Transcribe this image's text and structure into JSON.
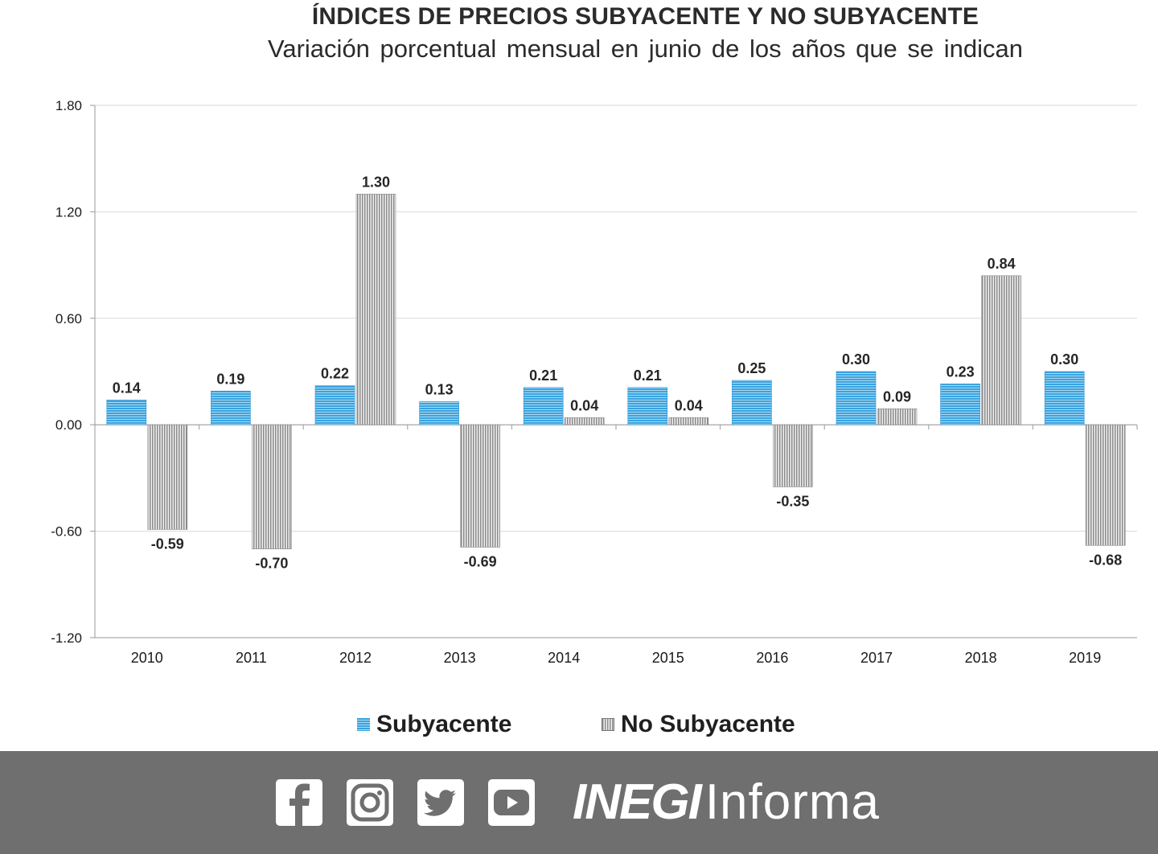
{
  "chart_data": {
    "type": "bar",
    "title": "ÍNDICES DE PRECIOS SUBYACENTE Y NO SUBYACENTE",
    "subtitle": "Variación porcentual mensual en junio de los años que se indican",
    "categories": [
      "2010",
      "2011",
      "2012",
      "2013",
      "2014",
      "2015",
      "2016",
      "2017",
      "2018",
      "2019"
    ],
    "series": [
      {
        "name": "Subyacente",
        "values": [
          0.14,
          0.19,
          0.22,
          0.13,
          0.21,
          0.21,
          0.25,
          0.3,
          0.23,
          0.3
        ],
        "color": "#3aa3df"
      },
      {
        "name": "No Subyacente",
        "values": [
          -0.59,
          -0.7,
          1.3,
          -0.69,
          0.04,
          0.04,
          -0.35,
          0.09,
          0.84,
          -0.68
        ],
        "color": "#8a8a8a"
      }
    ],
    "data_labels": {
      "Subyacente": [
        "0.14",
        "0.19",
        "0.22",
        "0.13",
        "0.21",
        "0.21",
        "0.25",
        "0.30",
        "0.23",
        "0.30"
      ],
      "No Subyacente": [
        "-0.59",
        "-0.70",
        "1.30",
        "-0.69",
        "0.04",
        "0.04",
        "-0.35",
        "0.09",
        "0.84",
        "-0.68"
      ]
    },
    "ylim": [
      -1.2,
      1.8
    ],
    "yticks": [
      "1.80",
      "1.20",
      "0.60",
      "0.00",
      "-0.60",
      "-1.20"
    ],
    "ytick_values": [
      1.8,
      1.2,
      0.6,
      0.0,
      -0.6,
      -1.2
    ],
    "grid": true,
    "legend": "bottom"
  },
  "legend": {
    "subyacente": "Subyacente",
    "no_subyacente": "No Subyacente"
  },
  "footer": {
    "icons": [
      "facebook-icon",
      "instagram-icon",
      "twitter-icon",
      "youtube-icon"
    ],
    "brand_bold": "INEGI",
    "brand_light": "Informa",
    "background": "#6f6f70"
  }
}
